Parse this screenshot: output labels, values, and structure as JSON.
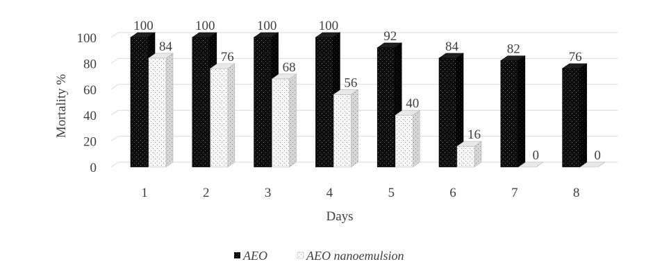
{
  "chart_data": {
    "type": "bar",
    "title": "",
    "xlabel": "Days",
    "ylabel": "Mortality %",
    "categories": [
      "1",
      "2",
      "3",
      "4",
      "5",
      "6",
      "7",
      "8"
    ],
    "ylim": [
      0,
      100
    ],
    "yticks": [
      "0",
      "20",
      "40",
      "60",
      "80",
      "100"
    ],
    "grid": true,
    "legend_position": "bottom",
    "series": [
      {
        "name": "AEO",
        "values": [
          100,
          100,
          100,
          100,
          92,
          84,
          82,
          76
        ],
        "labels": [
          "100",
          "100",
          "100",
          "100",
          "92",
          "84",
          "82",
          "76"
        ],
        "color": "#111111",
        "pattern": "dark-dots"
      },
      {
        "name": "AEO nanoemulsion",
        "values": [
          84,
          76,
          68,
          56,
          40,
          16,
          0,
          0
        ],
        "labels": [
          "84",
          "76",
          "68",
          "56",
          "40",
          "16",
          "0",
          "0"
        ],
        "color": "#f4f4f4",
        "pattern": "light-dots"
      }
    ]
  }
}
